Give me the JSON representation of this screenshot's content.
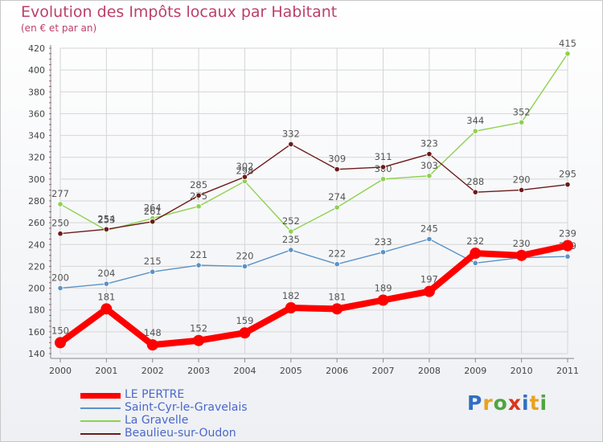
{
  "header": {
    "title": "Evolution des Impôts locaux par Habitant",
    "subtitle": "(en € et par an)"
  },
  "logo": {
    "letters": [
      {
        "char": "P",
        "color": "#2f6fc2"
      },
      {
        "char": "r",
        "color": "#e9a21e"
      },
      {
        "char": "o",
        "color": "#4fa43f"
      },
      {
        "char": "x",
        "color": "#d8361e"
      },
      {
        "char": "i",
        "color": "#2f6fc2"
      },
      {
        "char": "t",
        "color": "#e9a21e"
      },
      {
        "char": "i",
        "color": "#4fa43f"
      }
    ]
  },
  "chart_data": {
    "type": "line",
    "title": "Evolution des Impôts locaux par Habitant",
    "subtitle": "(en € et par an)",
    "categories": [
      "2000",
      "2001",
      "2002",
      "2003",
      "2004",
      "2005",
      "2006",
      "2007",
      "2008",
      "2009",
      "2010",
      "2011"
    ],
    "ylim": [
      140,
      420
    ],
    "yticks": [
      140,
      160,
      180,
      200,
      220,
      240,
      260,
      280,
      300,
      320,
      340,
      360,
      380,
      400,
      420
    ],
    "grid": true,
    "legend_position": "bottom-left",
    "series": [
      {
        "name": "Saint-Cyr-le-Gravelais",
        "color": "#5b92c6",
        "values": [
          200,
          204,
          215,
          221,
          220,
          235,
          222,
          233,
          245,
          223,
          228,
          229
        ],
        "labels": [
          "200",
          "204",
          "215",
          "221",
          "220",
          "235",
          "222",
          "233",
          "245",
          "",
          "",
          "229"
        ]
      },
      {
        "name": "La Gravelle",
        "color": "#8ed14f",
        "values": [
          277,
          253,
          264,
          275,
          298,
          252,
          274,
          300,
          303,
          344,
          352,
          415
        ],
        "labels": [
          "277",
          "253",
          "264",
          "275",
          "298",
          "252",
          "274",
          "300",
          "303",
          "344",
          "352",
          "415"
        ]
      },
      {
        "name": "Beaulieu-sur-Oudon",
        "color": "#6b1a1a",
        "values": [
          250,
          254,
          261,
          285,
          302,
          332,
          309,
          311,
          323,
          288,
          290,
          295
        ],
        "labels": [
          "250",
          "254",
          "261",
          "285",
          "302",
          "332",
          "309",
          "311",
          "323",
          "288",
          "290",
          "295"
        ]
      },
      {
        "name": "LE PERTRE",
        "color": "#ff0000",
        "highlight": true,
        "values": [
          150,
          181,
          148,
          152,
          159,
          182,
          181,
          189,
          197,
          232,
          230,
          239
        ],
        "labels": [
          "150",
          "181",
          "148",
          "152",
          "159",
          "182",
          "181",
          "189",
          "197",
          "232",
          "230",
          "239"
        ]
      }
    ],
    "legend_order": [
      "LE PERTRE",
      "Saint-Cyr-le-Gravelais",
      "La Gravelle",
      "Beaulieu-sur-Oudon"
    ]
  }
}
